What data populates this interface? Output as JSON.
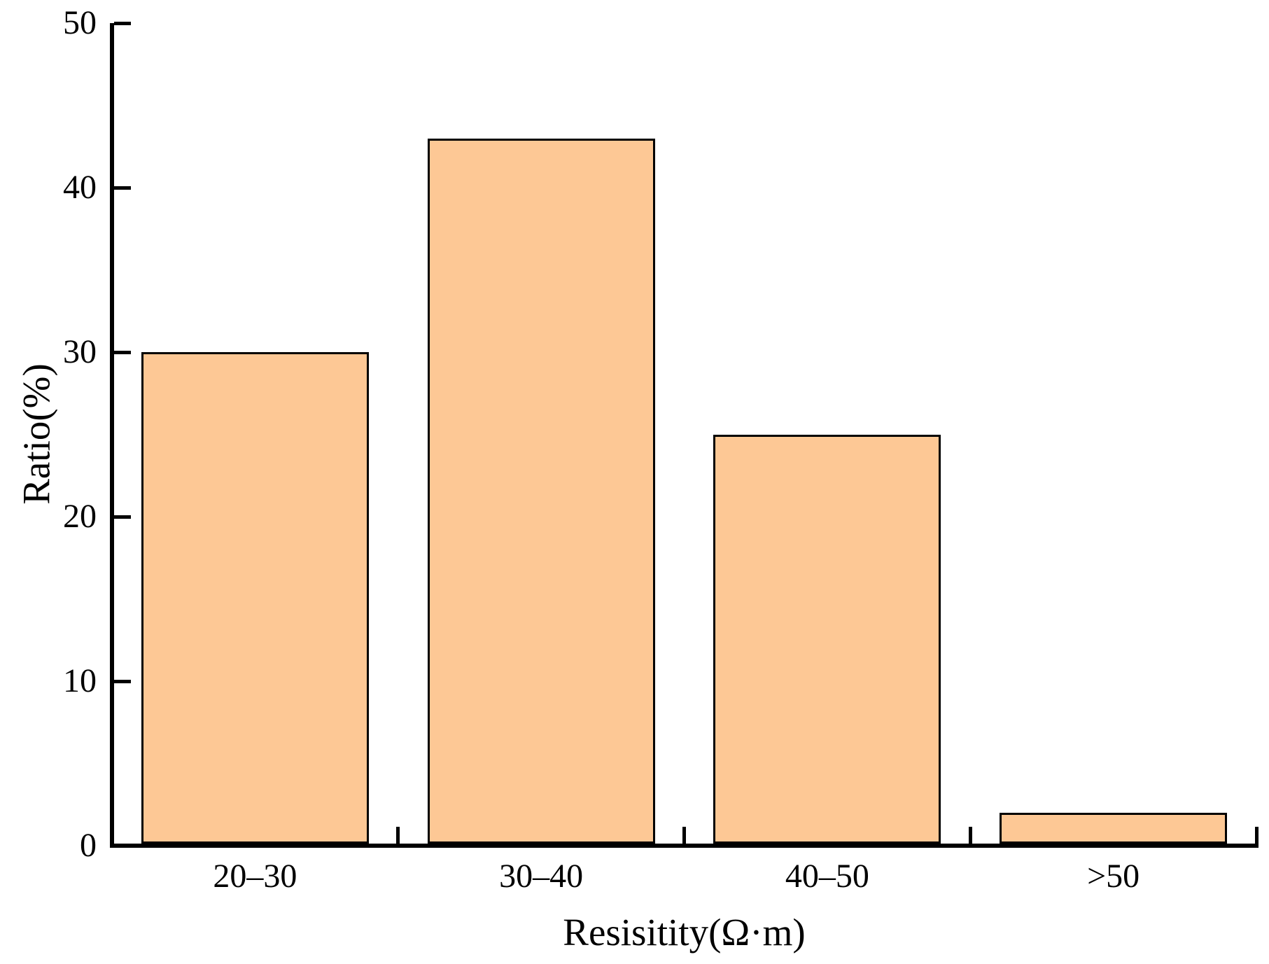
{
  "chart_data": {
    "type": "bar",
    "title": "",
    "categories": [
      "20–30",
      "30–40",
      "40–50",
      ">50"
    ],
    "values": [
      30,
      43,
      25,
      2
    ],
    "xlabel": "Resisitity(Ω·m)",
    "ylabel": "Ratio(%)",
    "ylim": [
      0,
      50
    ],
    "yticks": [
      0,
      10,
      20,
      30,
      40,
      50
    ],
    "grid": false,
    "legend": false,
    "tick_direction": "in",
    "colors": {
      "bar_fill": "#FDC895",
      "bar_edge": "#000000",
      "axis": "#000000",
      "text": "#000000",
      "background": "#FFFFFF"
    }
  }
}
